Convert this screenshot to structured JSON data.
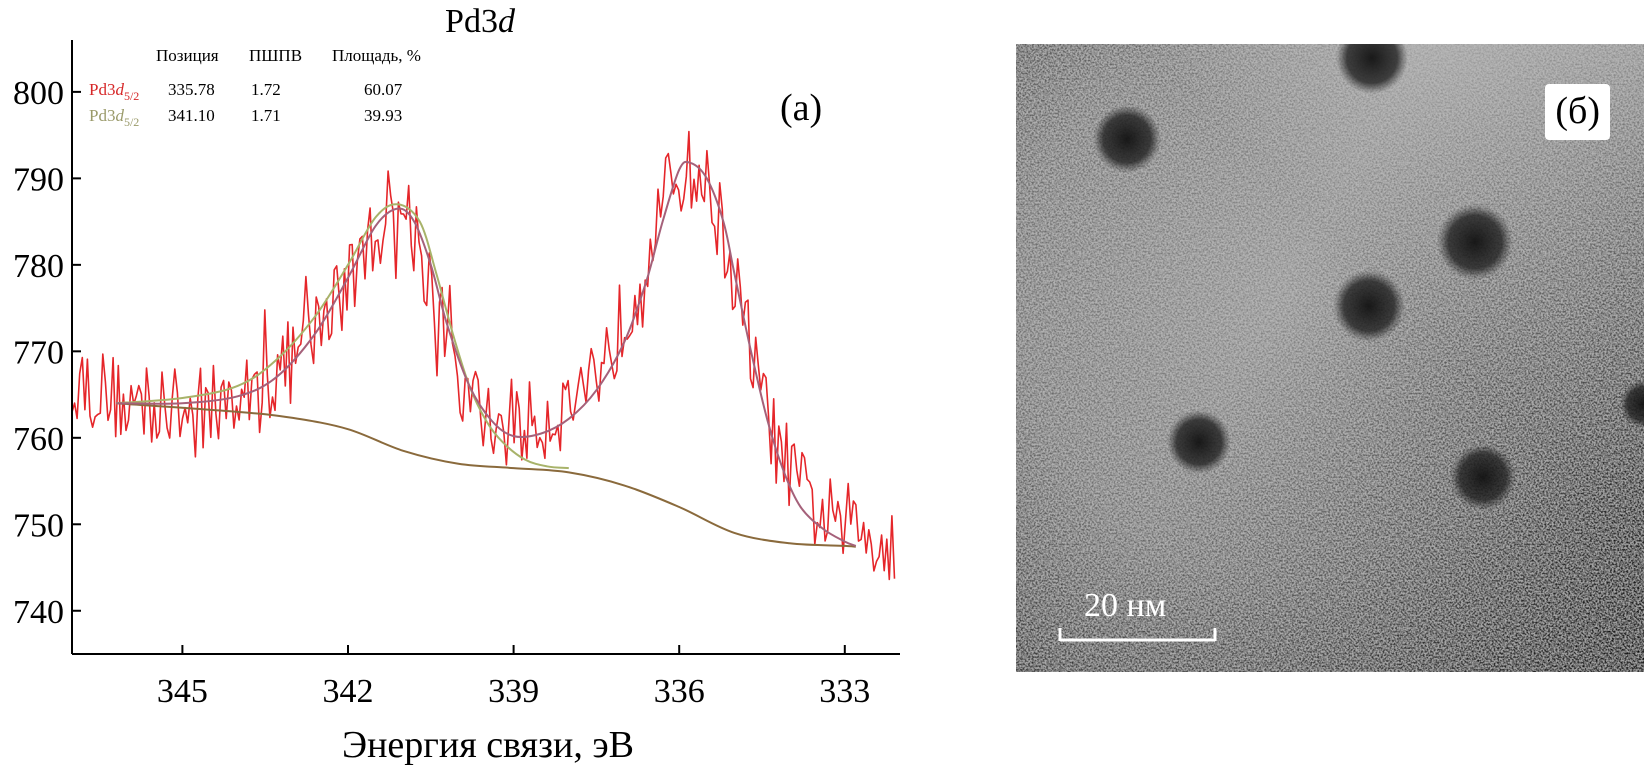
{
  "panel_a": {
    "label": "(a)",
    "table": {
      "headers": [
        "Позиция",
        "ПШПВ",
        "Площадь, %"
      ],
      "rows": [
        {
          "name_base": "Pd3",
          "name_italic": "d",
          "name_sub": "5/2",
          "position": "335.78",
          "fwhm": "1.72",
          "area": "60.07",
          "color": "#d62728"
        },
        {
          "name_base": "Pd3",
          "name_italic": "d",
          "name_sub": "5/2",
          "position": "341.10",
          "fwhm": "1.71",
          "area": "39.93",
          "color": "#9a9a6a"
        }
      ]
    }
  },
  "chart_data": {
    "type": "line",
    "title": "Pd3d",
    "title_base": "Pd3",
    "title_italic": "d",
    "xlabel": "Энергия связи, эВ",
    "ylabel": "",
    "x_reversed": true,
    "xlim": [
      347,
      332
    ],
    "ylim": [
      735,
      806
    ],
    "x_ticks": [
      345,
      342,
      339,
      336,
      333
    ],
    "y_ticks": [
      740,
      750,
      760,
      770,
      780,
      790,
      800
    ],
    "grid": false,
    "colors": {
      "raw": "#e5262a",
      "envelope": "#a5617a",
      "component": "#a8b36a",
      "background": "#8a6a3c"
    },
    "series": [
      {
        "role": "raw",
        "x_range": [
          347,
          332.1
        ],
        "base_samples": [
          [
            347,
            767
          ],
          [
            346,
            764
          ],
          [
            345,
            763
          ],
          [
            344,
            764
          ],
          [
            343.5,
            766
          ],
          [
            343,
            769
          ],
          [
            342.5,
            773
          ],
          [
            342,
            778
          ],
          [
            341.5,
            784
          ],
          [
            341.2,
            787
          ],
          [
            340.9,
            786
          ],
          [
            340.5,
            778
          ],
          [
            340.2,
            770
          ],
          [
            339.8,
            764
          ],
          [
            339.5,
            762
          ],
          [
            339,
            761
          ],
          [
            338.5,
            762
          ],
          [
            338,
            764
          ],
          [
            337.5,
            768
          ],
          [
            337,
            774
          ],
          [
            336.7,
            779
          ],
          [
            336.4,
            785
          ],
          [
            336.1,
            790
          ],
          [
            335.9,
            791
          ],
          [
            335.6,
            790
          ],
          [
            335.3,
            786
          ],
          [
            335,
            778
          ],
          [
            334.7,
            770
          ],
          [
            334.4,
            762
          ],
          [
            334,
            756
          ],
          [
            333.7,
            753
          ],
          [
            333.4,
            751
          ],
          [
            333,
            750
          ],
          [
            332.5,
            749
          ],
          [
            332.1,
            748
          ]
        ],
        "noise_amplitude": 5
      },
      {
        "role": "envelope",
        "samples": [
          [
            346.2,
            764
          ],
          [
            345,
            764
          ],
          [
            344,
            764.8
          ],
          [
            343.3,
            767
          ],
          [
            342.6,
            772
          ],
          [
            342,
            778.5
          ],
          [
            341.5,
            784.5
          ],
          [
            341.1,
            786.5
          ],
          [
            340.8,
            785
          ],
          [
            340.5,
            780
          ],
          [
            340.2,
            773
          ],
          [
            339.8,
            766
          ],
          [
            339.4,
            762
          ],
          [
            339,
            760.2
          ],
          [
            338.5,
            760.5
          ],
          [
            338,
            762.2
          ],
          [
            337.5,
            765.5
          ],
          [
            337,
            771
          ],
          [
            336.6,
            778
          ],
          [
            336.3,
            785
          ],
          [
            336,
            791
          ],
          [
            335.8,
            791.8
          ],
          [
            335.5,
            790
          ],
          [
            335.2,
            785
          ],
          [
            335,
            779
          ],
          [
            334.7,
            770
          ],
          [
            334.4,
            762
          ],
          [
            334.1,
            756
          ],
          [
            333.8,
            752
          ],
          [
            333.4,
            749.5
          ],
          [
            333,
            748
          ],
          [
            332.8,
            747.5
          ]
        ]
      },
      {
        "role": "component",
        "peak": 341.1,
        "samples": [
          [
            346.2,
            764
          ],
          [
            345,
            764.6
          ],
          [
            344,
            766
          ],
          [
            343.3,
            769
          ],
          [
            342.6,
            774
          ],
          [
            342,
            780
          ],
          [
            341.5,
            785.5
          ],
          [
            341.1,
            787
          ],
          [
            340.7,
            785
          ],
          [
            340.4,
            779
          ],
          [
            340.1,
            772
          ],
          [
            339.8,
            766
          ],
          [
            339.5,
            762
          ],
          [
            339.2,
            759.5
          ],
          [
            338.8,
            757.5
          ],
          [
            338.4,
            756.7
          ],
          [
            338,
            756.5
          ]
        ]
      },
      {
        "role": "background",
        "samples": [
          [
            346.2,
            764
          ],
          [
            344,
            763
          ],
          [
            343,
            762.3
          ],
          [
            342,
            761
          ],
          [
            341,
            758.5
          ],
          [
            340,
            757
          ],
          [
            339,
            756.5
          ],
          [
            338,
            756
          ],
          [
            337,
            754.5
          ],
          [
            336,
            752
          ],
          [
            335,
            749
          ],
          [
            334,
            747.8
          ],
          [
            333,
            747.5
          ],
          [
            332.8,
            747.4
          ]
        ]
      }
    ]
  },
  "panel_b": {
    "label": "(б)",
    "scale_bar_text": "20 нм"
  }
}
